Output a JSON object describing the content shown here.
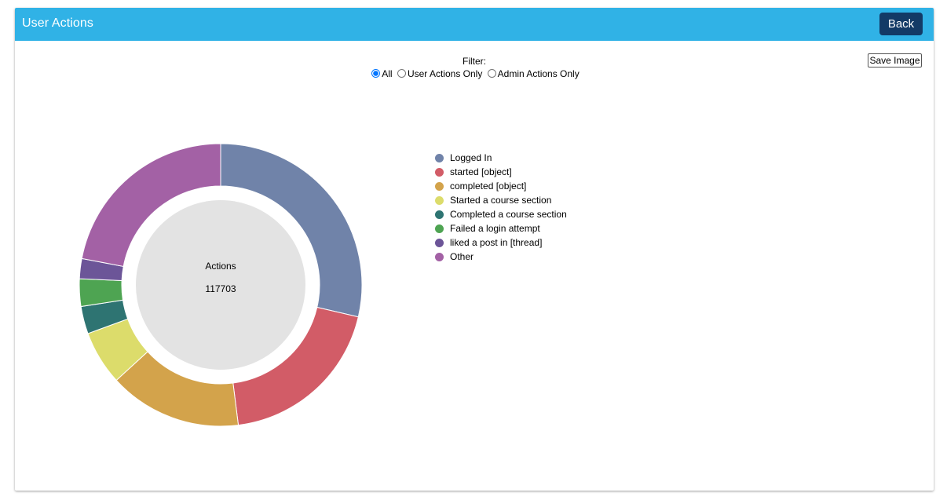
{
  "header": {
    "title": "User Actions",
    "back_label": "Back"
  },
  "filter": {
    "label": "Filter:",
    "options": [
      {
        "label": "All",
        "selected": true
      },
      {
        "label": "User Actions Only",
        "selected": false
      },
      {
        "label": "Admin Actions Only",
        "selected": false
      }
    ]
  },
  "save_image_label": "Save Image",
  "chart_data": {
    "type": "pie",
    "variant": "donut",
    "center_label": "Actions",
    "center_value": "117703",
    "legend_position": "right",
    "series": [
      {
        "name": "Logged In",
        "value": 33700,
        "color": "#7083a9"
      },
      {
        "name": "started [object]",
        "value": 22800,
        "color": "#d25c67"
      },
      {
        "name": "completed [object]",
        "value": 17900,
        "color": "#d3a34b"
      },
      {
        "name": "Started a course section",
        "value": 7300,
        "color": "#dcdc6b"
      },
      {
        "name": "Completed a course section",
        "value": 3700,
        "color": "#2e7472"
      },
      {
        "name": "Failed a login attempt",
        "value": 3700,
        "color": "#4ea452"
      },
      {
        "name": "liked a post in [thread]",
        "value": 2700,
        "color": "#6c5598"
      },
      {
        "name": "Other",
        "value": 25903,
        "color": "#a361a5"
      }
    ]
  }
}
